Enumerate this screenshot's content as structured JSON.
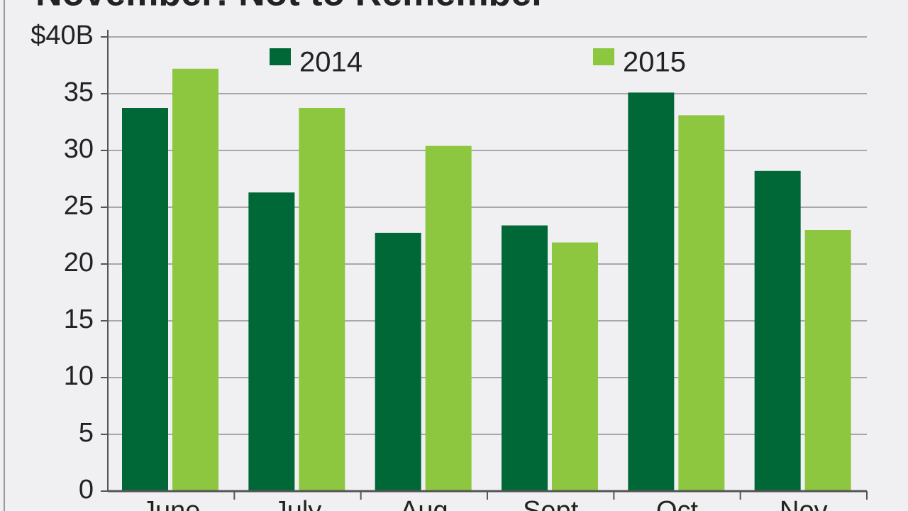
{
  "chart_data": {
    "type": "bar",
    "title": "November: Not to Remember",
    "categories": [
      "June",
      "July",
      "Aug",
      "Sept",
      "Oct",
      "Nov"
    ],
    "series": [
      {
        "name": "2014",
        "color": "#006837",
        "values": [
          33.75,
          26.3,
          22.75,
          23.4,
          35.1,
          28.2
        ]
      },
      {
        "name": "2015",
        "color": "#8dc63f",
        "values": [
          37.2,
          33.75,
          30.4,
          21.9,
          33.1,
          23
        ]
      }
    ],
    "ylim": [
      0,
      40
    ],
    "yticks": [
      0,
      5,
      10,
      15,
      20,
      25,
      30,
      35,
      {
        "value": 40,
        "label": "$40B"
      }
    ],
    "grid": true
  }
}
